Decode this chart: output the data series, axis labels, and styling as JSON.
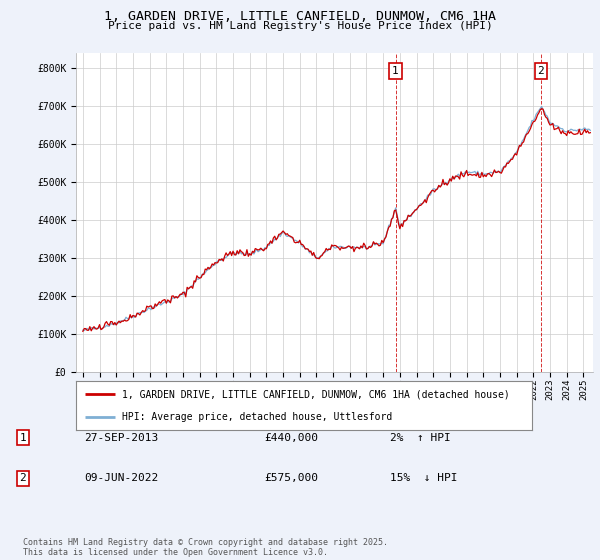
{
  "title": "1, GARDEN DRIVE, LITTLE CANFIELD, DUNMOW, CM6 1HA",
  "subtitle": "Price paid vs. HM Land Registry's House Price Index (HPI)",
  "ylabel_ticks": [
    0,
    100000,
    200000,
    300000,
    400000,
    500000,
    600000,
    700000,
    800000
  ],
  "ylabel_labels": [
    "£0",
    "£100K",
    "£200K",
    "£300K",
    "£400K",
    "£500K",
    "£600K",
    "£700K",
    "£800K"
  ],
  "ylim": [
    0,
    840000
  ],
  "xlim_start": 1994.6,
  "xlim_end": 2025.6,
  "transactions": [
    {
      "num": 1,
      "date": "27-SEP-2013",
      "price": 440000,
      "year": 2013.74,
      "pct": "2%",
      "dir": "↑"
    },
    {
      "num": 2,
      "date": "09-JUN-2022",
      "price": 575000,
      "year": 2022.44,
      "pct": "15%",
      "dir": "↓"
    }
  ],
  "line_color_property": "#cc0000",
  "line_color_hpi": "#7fafd4",
  "legend_label_property": "1, GARDEN DRIVE, LITTLE CANFIELD, DUNMOW, CM6 1HA (detached house)",
  "legend_label_hpi": "HPI: Average price, detached house, Uttlesford",
  "footnote": "Contains HM Land Registry data © Crown copyright and database right 2025.\nThis data is licensed under the Open Government Licence v3.0.",
  "background_color": "#eef2fa",
  "plot_bg_color": "#ffffff",
  "grid_color": "#cccccc",
  "title_fontsize": 9.5,
  "subtitle_fontsize": 8
}
